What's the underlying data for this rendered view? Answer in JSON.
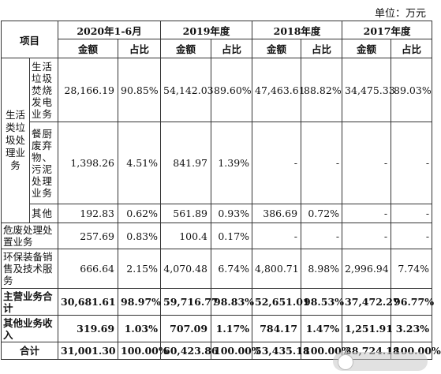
{
  "unit_label": "单位：万元",
  "header": {
    "item": "项目",
    "periods": [
      "2020年1-6月",
      "2019年度",
      "2018年度",
      "2017年度"
    ],
    "amount": "金额",
    "ratio": "占比"
  },
  "groups": {
    "living_waste": "生活类垃圾处理业务"
  },
  "rows": [
    {
      "label": "生活垃圾焚烧发电业务",
      "v": [
        "28,166.19",
        "90.85%",
        "54,142.03",
        "89.60%",
        "47,463.61",
        "88.82%",
        "34,475.33",
        "89.03%"
      ]
    },
    {
      "label": "餐厨废弃物、污泥处理业务",
      "v": [
        "1,398.26",
        "4.51%",
        "841.97",
        "1.39%",
        "-",
        "-",
        "-",
        "-"
      ]
    },
    {
      "label": "其他",
      "v": [
        "192.83",
        "0.62%",
        "561.89",
        "0.93%",
        "386.69",
        "0.72%",
        "-",
        "-"
      ]
    },
    {
      "label": "危废处理处置业务",
      "v": [
        "257.69",
        "0.83%",
        "100.4",
        "0.17%",
        "-",
        "-",
        "-",
        "-"
      ]
    },
    {
      "label": "环保装备销售及技术服务",
      "v": [
        "666.64",
        "2.15%",
        "4,070.48",
        "6.74%",
        "4,800.71",
        "8.98%",
        "2,996.94",
        "7.74%"
      ]
    },
    {
      "label": "主营业务合计",
      "v": [
        "30,681.61",
        "98.97%",
        "59,716.77",
        "98.83%",
        "52,651.01",
        "98.53%",
        "37,472.27",
        "96.77%"
      ]
    },
    {
      "label": "其他业务收入",
      "v": [
        "319.69",
        "1.03%",
        "707.09",
        "1.17%",
        "784.17",
        "1.47%",
        "1,251.91",
        "3.23%"
      ]
    },
    {
      "label": "合计",
      "v": [
        "31,001.30",
        "100.00%",
        "60,423.86",
        "100.00%",
        "53,435.18",
        "100.00%",
        "38,724.18",
        "100.00%"
      ]
    }
  ]
}
